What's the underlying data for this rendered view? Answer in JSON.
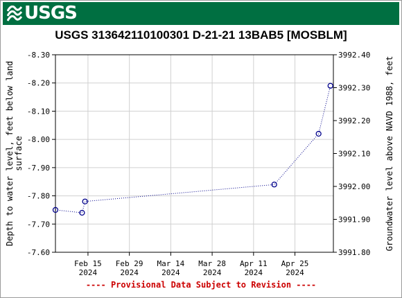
{
  "header": {
    "logo_text": "USGS",
    "logo_icon": "usgs-wave-icon",
    "brand_color": "#006f41"
  },
  "chart_data": {
    "type": "line",
    "title": "USGS 313642110100301 D-21-21 13BAB5 [MOSBLM]",
    "ylabel_left": "Depth to water level, feet below land surface",
    "ylabel_right": "Groundwater level above NAVD 1988, feet",
    "left_axis": {
      "reversed": true,
      "ylim": [
        -7.6,
        -8.3
      ],
      "ticks": [
        "-8.30",
        "-8.20",
        "-8.10",
        "-8.00",
        "-7.90",
        "-7.80",
        "-7.70",
        "-7.60"
      ],
      "tick_values": [
        -8.3,
        -8.2,
        -8.1,
        -8.0,
        -7.9,
        -7.8,
        -7.7,
        -7.6
      ]
    },
    "right_axis": {
      "ylim": [
        3991.8,
        3992.4
      ],
      "ticks": [
        "3992.40",
        "3992.30",
        "3992.20",
        "3992.10",
        "3992.00",
        "3991.90",
        "3991.80"
      ],
      "tick_values": [
        3992.4,
        3992.3,
        3992.2,
        3992.1,
        3992.0,
        3991.9,
        3991.8
      ]
    },
    "x_axis": {
      "start": "2024-02-04",
      "end": "2024-05-08",
      "ticks": [
        {
          "date": "2024-02-15",
          "line1": "Feb 15",
          "line2": "2024"
        },
        {
          "date": "2024-02-29",
          "line1": "Feb 29",
          "line2": "2024"
        },
        {
          "date": "2024-03-14",
          "line1": "Mar 14",
          "line2": "2024"
        },
        {
          "date": "2024-03-28",
          "line1": "Mar 28",
          "line2": "2024"
        },
        {
          "date": "2024-04-11",
          "line1": "Apr 11",
          "line2": "2024"
        },
        {
          "date": "2024-04-25",
          "line1": "Apr 25",
          "line2": "2024"
        }
      ]
    },
    "series": [
      {
        "color": "#00008b",
        "line_style": "dotted",
        "marker": "open-circle",
        "points": [
          {
            "date": "2024-02-04",
            "value": -7.75
          },
          {
            "date": "2024-02-13",
            "value": -7.74
          },
          {
            "date": "2024-02-14",
            "value": -7.78
          },
          {
            "date": "2024-04-18",
            "value": -7.84
          },
          {
            "date": "2024-05-03",
            "value": -8.02
          },
          {
            "date": "2024-05-07",
            "value": -8.19
          }
        ]
      }
    ],
    "grid": true,
    "grid_color": "#d0d0d0"
  },
  "footer": {
    "provisional_text": "---- Provisional Data Subject to Revision ----",
    "color": "#cc0000"
  }
}
